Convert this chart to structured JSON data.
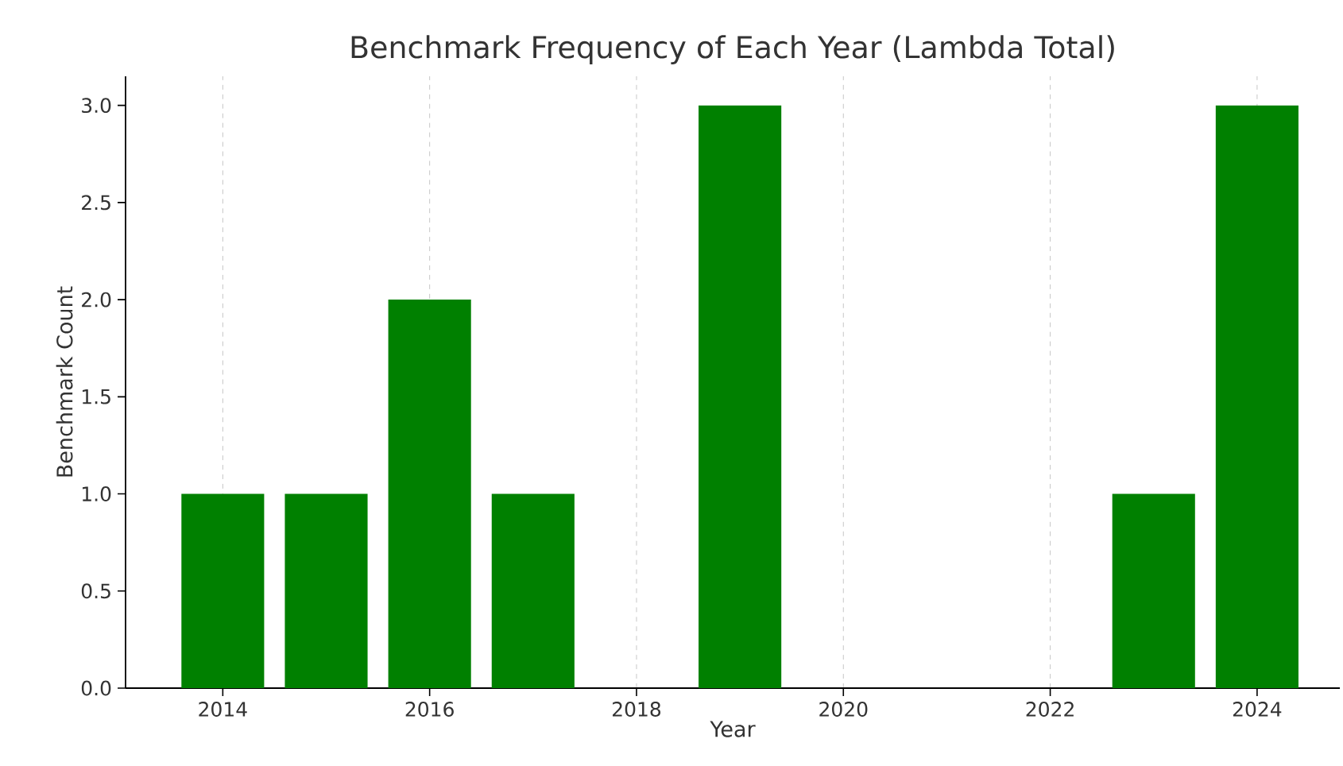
{
  "chart_data": {
    "type": "bar",
    "title": "Benchmark Frequency of Each Year (Lambda Total)",
    "xlabel": "Year",
    "ylabel": "Benchmark Count",
    "x": [
      2014,
      2015,
      2016,
      2017,
      2019,
      2023,
      2024
    ],
    "values": [
      1,
      1,
      2,
      1,
      3,
      1,
      3
    ],
    "color": "#008000",
    "xlim": [
      2013.06,
      2024.8
    ],
    "ylim": [
      0,
      3.15
    ],
    "xticks": [
      2014,
      2016,
      2018,
      2020,
      2022,
      2024
    ],
    "yticks": [
      {
        "value": 0,
        "label": "0.0"
      },
      {
        "value": 0.5,
        "label": "0.5"
      },
      {
        "value": 1,
        "label": "1.0"
      },
      {
        "value": 1.5,
        "label": "1.5"
      },
      {
        "value": 2,
        "label": "2.0"
      },
      {
        "value": 2.5,
        "label": "2.5"
      },
      {
        "value": 3,
        "label": "3.0"
      }
    ],
    "grid": "x"
  }
}
